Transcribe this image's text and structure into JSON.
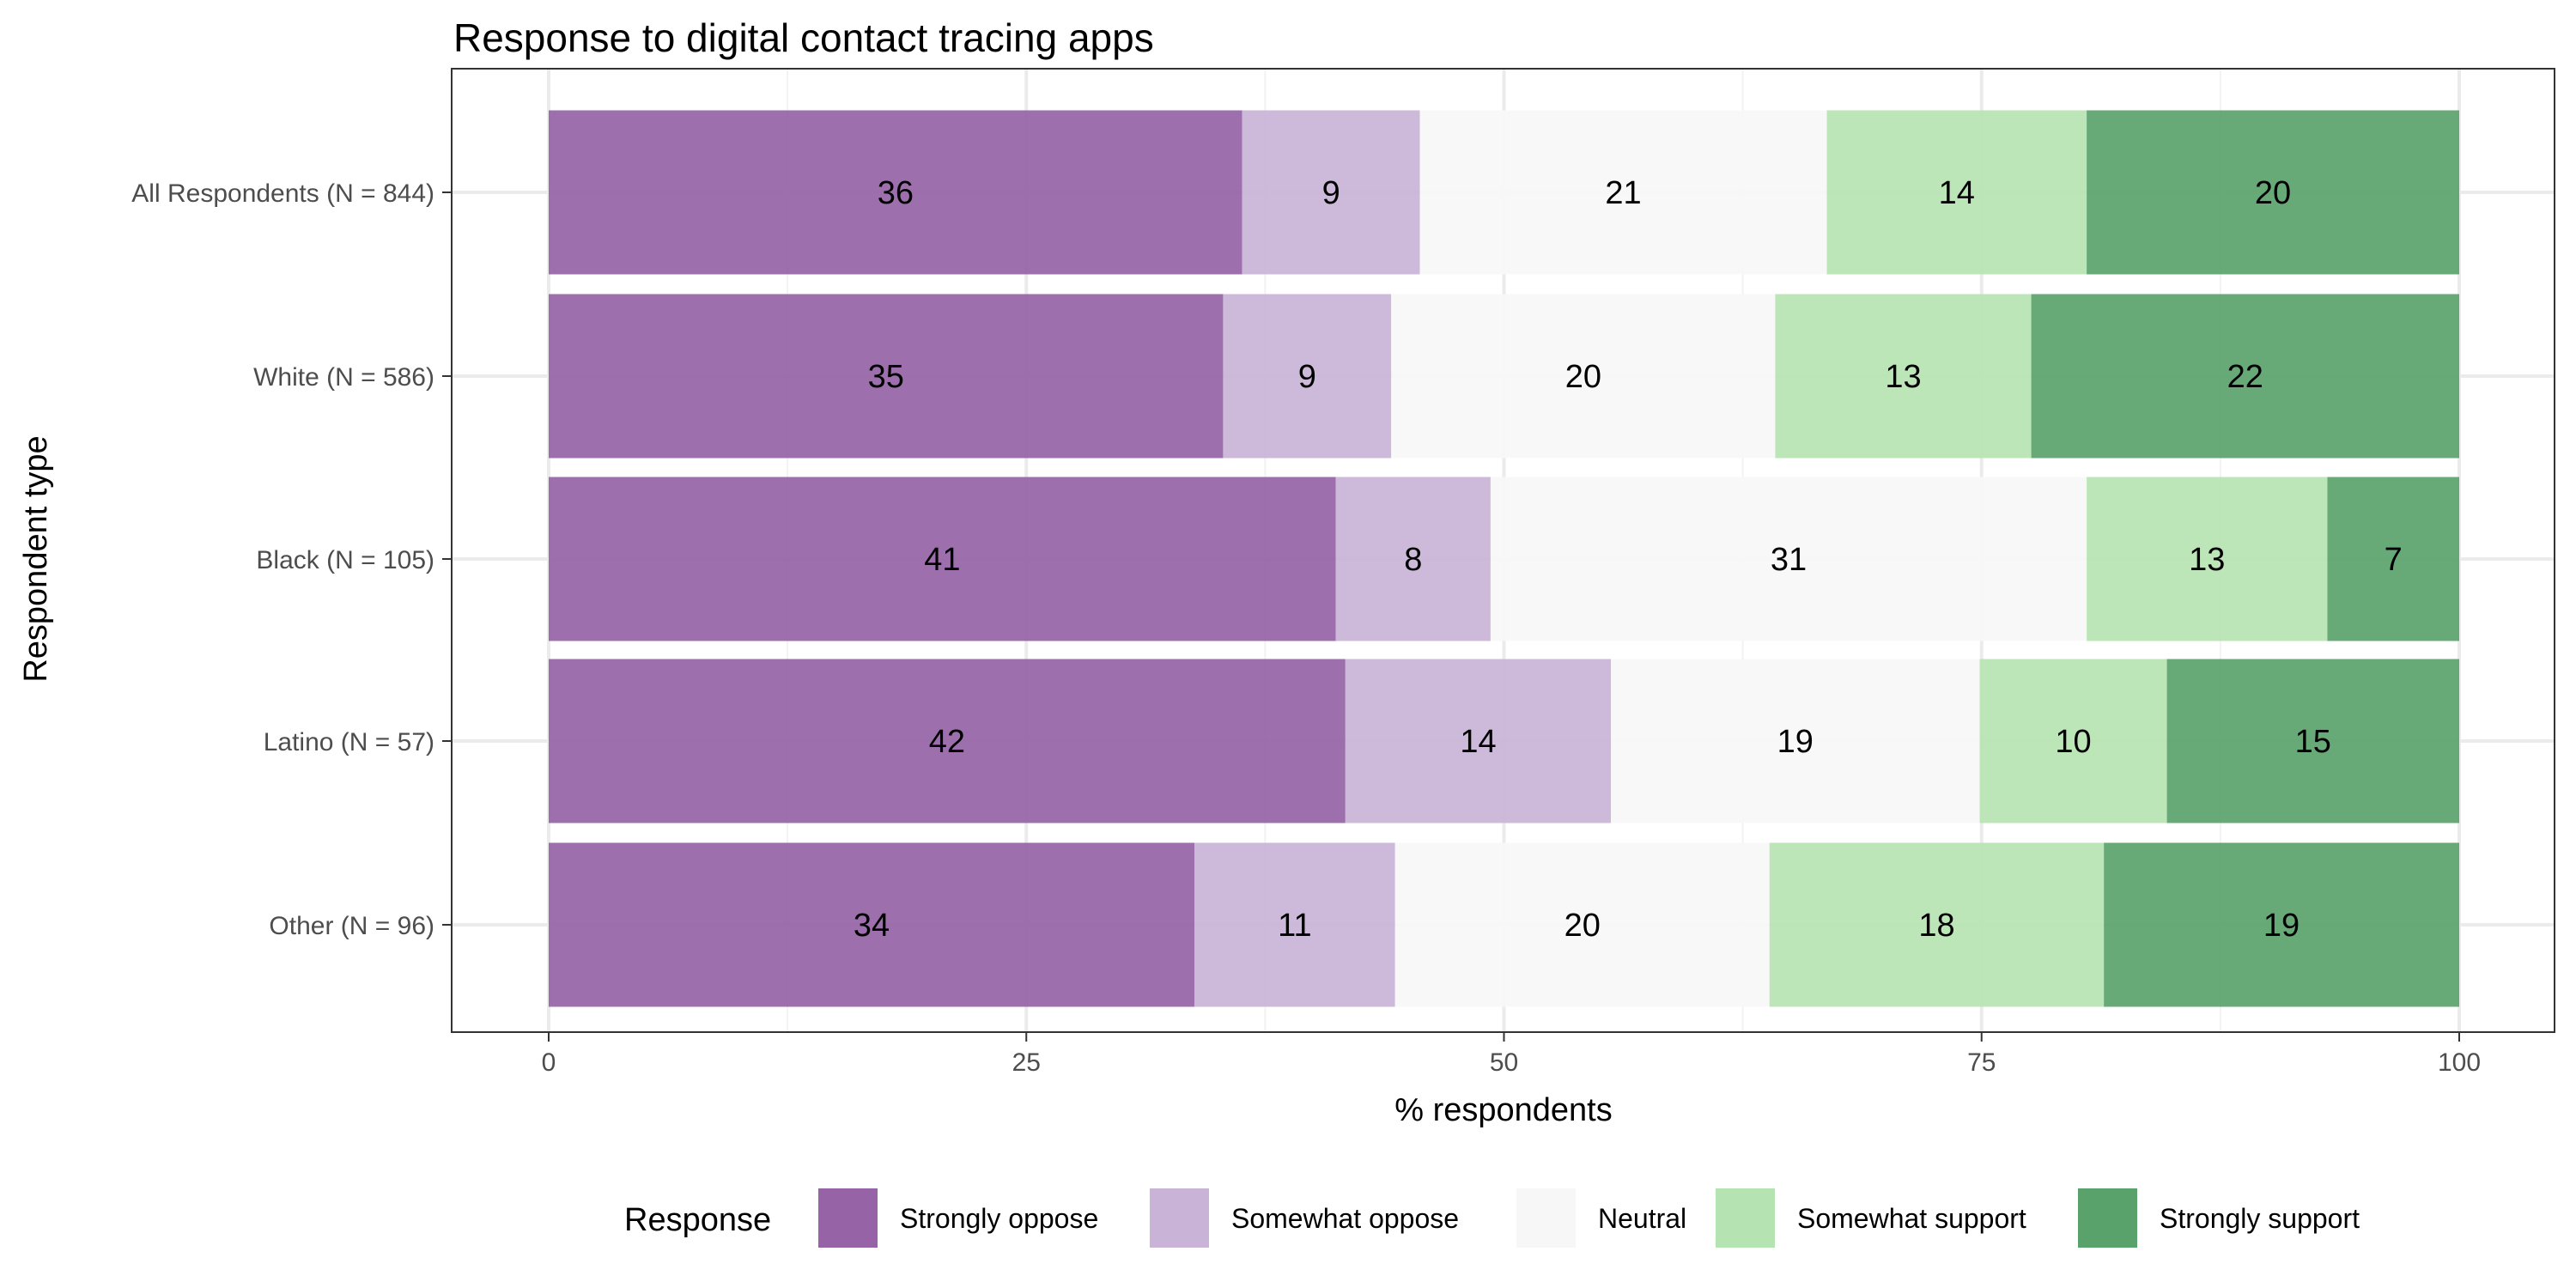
{
  "chart_data": {
    "type": "bar",
    "orientation": "horizontal",
    "stacked": true,
    "title": "Response to digital contact tracing apps",
    "xlabel": "% respondents",
    "ylabel": "Respondent type",
    "xlim": [
      0,
      100
    ],
    "xticks": [
      0,
      25,
      50,
      75,
      100
    ],
    "grid": true,
    "legend_title": "Response",
    "legend_position": "bottom",
    "categories": [
      "All Respondents (N = 844)",
      "White (N = 586)",
      "Black (N = 105)",
      "Latino (N = 57)",
      "Other (N = 96)"
    ],
    "series": [
      {
        "name": "Strongly oppose",
        "color": "#9563A6",
        "values": [
          36.3,
          35.3,
          41.2,
          41.7,
          33.8
        ],
        "labels": [
          "36",
          "35",
          "41",
          "42",
          "34"
        ]
      },
      {
        "name": "Somewhat oppose",
        "color": "#C9B3D7",
        "values": [
          9.3,
          8.8,
          8.1,
          13.9,
          10.5
        ],
        "labels": [
          "9",
          "9",
          "8",
          "14",
          "11"
        ]
      },
      {
        "name": "Neutral",
        "color": "#F7F7F7",
        "values": [
          21.3,
          20.1,
          31.2,
          19.3,
          19.6
        ],
        "labels": [
          "21",
          "20",
          "31",
          "19",
          "20"
        ]
      },
      {
        "name": "Somewhat support",
        "color": "#B6E3B2",
        "values": [
          13.6,
          13.4,
          12.6,
          9.8,
          17.5
        ],
        "labels": [
          "14",
          "13",
          "13",
          "10",
          "18"
        ]
      },
      {
        "name": "Strongly support",
        "color": "#5AA26B",
        "values": [
          19.5,
          22.4,
          6.9,
          15.3,
          18.6
        ],
        "labels": [
          "20",
          "22",
          "7",
          "15",
          "19"
        ]
      }
    ]
  }
}
